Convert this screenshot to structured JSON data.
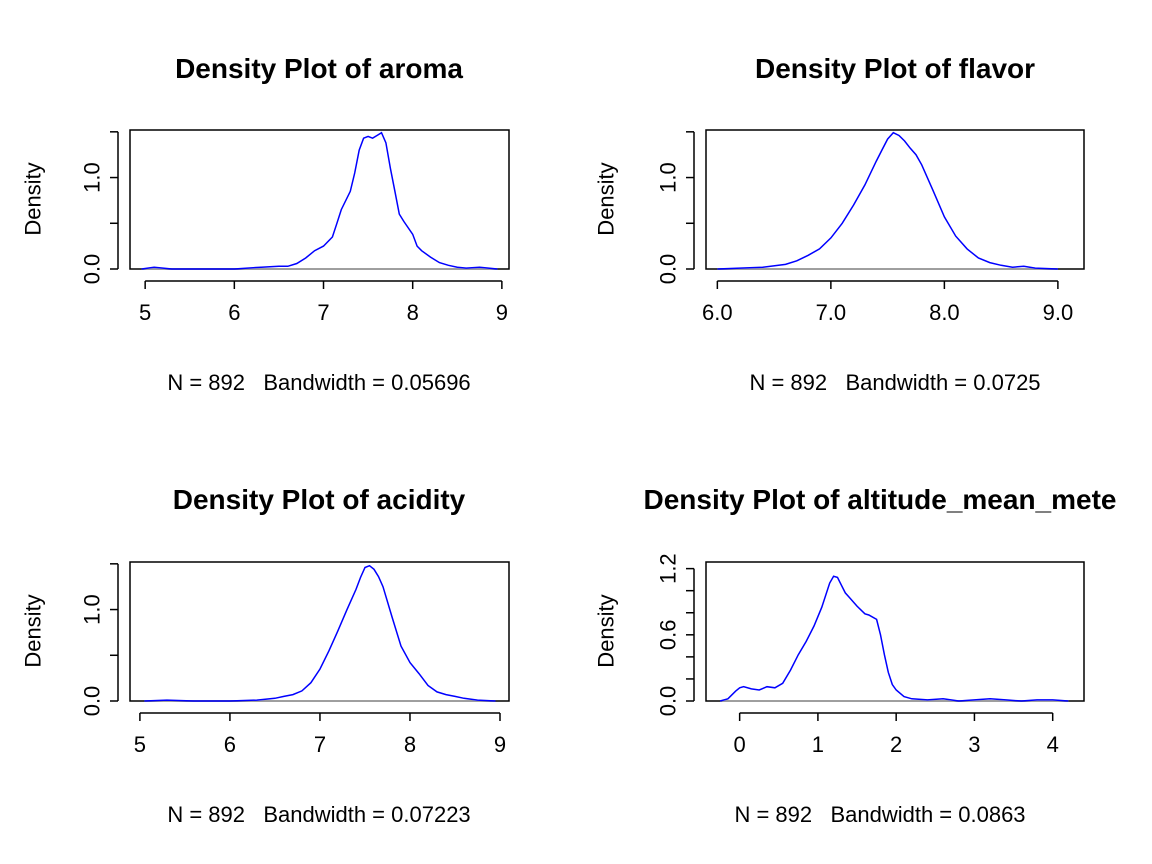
{
  "colors": {
    "line": "#0000ff",
    "zero_line": "#bebebe",
    "frame": "#000000"
  },
  "chart_data": [
    {
      "type": "line",
      "title": "Density Plot of aroma",
      "xlabel": "N = 892   Bandwidth = 0.05696",
      "ylabel": "Density",
      "xlim": [
        4.83,
        9.08
      ],
      "ylim": [
        0,
        1.52
      ],
      "xticks": [
        5,
        6,
        7,
        8,
        9
      ],
      "xtick_labels": [
        "5",
        "6",
        "7",
        "8",
        "9"
      ],
      "yticks": [
        0,
        0.5,
        1.0,
        1.5
      ],
      "ytick_labels": [
        "0.0",
        "",
        "1.0",
        ""
      ],
      "series": [
        {
          "x": [
            4.96,
            5.1,
            5.3,
            5.6,
            6.0,
            6.3,
            6.5,
            6.6,
            6.7,
            6.8,
            6.9,
            7.0,
            7.1,
            7.15,
            7.2,
            7.3,
            7.35,
            7.4,
            7.45,
            7.5,
            7.55,
            7.6,
            7.65,
            7.7,
            7.75,
            7.8,
            7.85,
            7.9,
            8.0,
            8.05,
            8.1,
            8.2,
            8.3,
            8.4,
            8.5,
            8.6,
            8.75,
            8.95
          ],
          "y": [
            0.0,
            0.02,
            0.0,
            0.0,
            0.0,
            0.02,
            0.03,
            0.03,
            0.06,
            0.12,
            0.2,
            0.25,
            0.35,
            0.5,
            0.65,
            0.85,
            1.05,
            1.3,
            1.43,
            1.45,
            1.43,
            1.46,
            1.49,
            1.38,
            1.1,
            0.85,
            0.6,
            0.52,
            0.38,
            0.25,
            0.2,
            0.13,
            0.07,
            0.04,
            0.02,
            0.01,
            0.02,
            0.0
          ]
        }
      ]
    },
    {
      "type": "line",
      "title": "Density Plot of flavor",
      "xlabel": "N = 892   Bandwidth = 0.0725",
      "ylabel": "Density",
      "xlim": [
        5.9,
        9.23
      ],
      "ylim": [
        0,
        1.52
      ],
      "xticks": [
        6.0,
        7.0,
        8.0,
        9.0
      ],
      "xtick_labels": [
        "6.0",
        "7.0",
        "8.0",
        "9.0"
      ],
      "yticks": [
        0,
        0.5,
        1.0,
        1.5
      ],
      "ytick_labels": [
        "0.0",
        "",
        "1.0",
        ""
      ],
      "series": [
        {
          "x": [
            6.0,
            6.2,
            6.4,
            6.6,
            6.7,
            6.8,
            6.9,
            7.0,
            7.1,
            7.2,
            7.3,
            7.4,
            7.45,
            7.5,
            7.55,
            7.6,
            7.65,
            7.7,
            7.75,
            7.8,
            7.9,
            8.0,
            8.1,
            8.2,
            8.3,
            8.4,
            8.5,
            8.6,
            8.7,
            8.8,
            9.0
          ],
          "y": [
            0.0,
            0.01,
            0.02,
            0.05,
            0.09,
            0.15,
            0.22,
            0.34,
            0.5,
            0.7,
            0.92,
            1.18,
            1.3,
            1.42,
            1.49,
            1.46,
            1.4,
            1.32,
            1.25,
            1.14,
            0.86,
            0.57,
            0.36,
            0.22,
            0.12,
            0.07,
            0.04,
            0.02,
            0.03,
            0.01,
            0.0
          ]
        }
      ]
    },
    {
      "type": "line",
      "title": "Density Plot of acidity",
      "xlabel": "N = 892   Bandwidth = 0.07223",
      "ylabel": "Density",
      "xlim": [
        4.89,
        9.1
      ],
      "ylim": [
        0,
        1.52
      ],
      "xticks": [
        5,
        6,
        7,
        8,
        9
      ],
      "xtick_labels": [
        "5",
        "6",
        "7",
        "8",
        "9"
      ],
      "yticks": [
        0,
        0.5,
        1.0,
        1.5
      ],
      "ytick_labels": [
        "0.0",
        "",
        "1.0",
        ""
      ],
      "series": [
        {
          "x": [
            5.05,
            5.3,
            5.6,
            6.0,
            6.3,
            6.5,
            6.6,
            6.7,
            6.8,
            6.9,
            7.0,
            7.1,
            7.2,
            7.3,
            7.4,
            7.45,
            7.5,
            7.55,
            7.6,
            7.65,
            7.7,
            7.8,
            7.9,
            8.0,
            8.1,
            8.2,
            8.3,
            8.4,
            8.5,
            8.6,
            8.75,
            8.95
          ],
          "y": [
            0.0,
            0.01,
            0.0,
            0.0,
            0.01,
            0.03,
            0.05,
            0.07,
            0.11,
            0.2,
            0.35,
            0.55,
            0.77,
            1.0,
            1.22,
            1.35,
            1.46,
            1.48,
            1.44,
            1.36,
            1.25,
            0.92,
            0.6,
            0.42,
            0.3,
            0.17,
            0.1,
            0.07,
            0.05,
            0.03,
            0.01,
            0.0
          ]
        }
      ]
    },
    {
      "type": "line",
      "title": "Density Plot of altitude_mean_mete",
      "xlabel": "N = 892   Bandwidth = 0.0863",
      "ylabel": "Density",
      "xlim": [
        -0.43,
        4.4
      ],
      "ylim": [
        0,
        1.26
      ],
      "xticks": [
        0,
        1,
        2,
        3,
        4
      ],
      "xtick_labels": [
        "0",
        "1",
        "2",
        "3",
        "4"
      ],
      "yticks": [
        0,
        0.2,
        0.4,
        0.6,
        0.8,
        1.0,
        1.2
      ],
      "ytick_labels": [
        "0.0",
        "",
        "",
        "0.6",
        "",
        "",
        "1.2"
      ],
      "series": [
        {
          "x": [
            -0.25,
            -0.15,
            -0.05,
            0.0,
            0.05,
            0.15,
            0.25,
            0.35,
            0.45,
            0.55,
            0.65,
            0.75,
            0.85,
            0.95,
            1.05,
            1.15,
            1.2,
            1.25,
            1.3,
            1.35,
            1.4,
            1.5,
            1.6,
            1.65,
            1.75,
            1.8,
            1.85,
            1.9,
            1.95,
            2.0,
            2.1,
            2.2,
            2.4,
            2.6,
            2.8,
            3.0,
            3.2,
            3.4,
            3.6,
            3.8,
            4.0,
            4.2
          ],
          "y": [
            0.0,
            0.02,
            0.09,
            0.12,
            0.13,
            0.11,
            0.1,
            0.13,
            0.12,
            0.16,
            0.28,
            0.42,
            0.54,
            0.68,
            0.85,
            1.07,
            1.13,
            1.12,
            1.05,
            0.98,
            0.94,
            0.86,
            0.79,
            0.78,
            0.74,
            0.6,
            0.42,
            0.26,
            0.15,
            0.1,
            0.04,
            0.02,
            0.01,
            0.02,
            0.0,
            0.01,
            0.02,
            0.01,
            0.0,
            0.01,
            0.01,
            0.0
          ]
        }
      ]
    }
  ]
}
